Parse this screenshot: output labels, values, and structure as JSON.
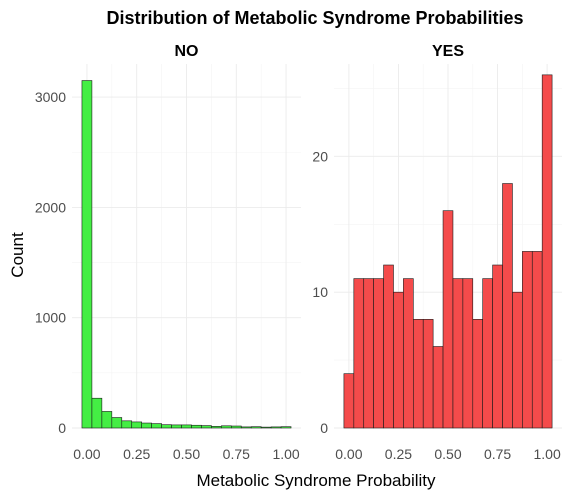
{
  "chart_data": {
    "type": "bar",
    "title": "Distribution of Metabolic Syndrome Probabilities",
    "xlabel": "Metabolic Syndrome Probability",
    "ylabel": "Count",
    "grid": true,
    "legend": "none",
    "bin_width": 0.05,
    "bin_start": -0.025,
    "xlim": [
      -0.075,
      1.075
    ],
    "x_ticks": [
      0.0,
      0.25,
      0.5,
      0.75,
      1.0
    ],
    "x_tick_labels": [
      "0.00",
      "0.25",
      "0.50",
      "0.75",
      "1.00"
    ],
    "panels": [
      {
        "label": "NO",
        "color": "#44ee44",
        "ylim": [
          0,
          3300
        ],
        "y_ticks": [
          0,
          1000,
          2000,
          3000
        ],
        "y_tick_labels": [
          "0",
          "1000",
          "2000",
          "3000"
        ],
        "x": [
          0.0,
          0.05,
          0.1,
          0.15,
          0.2,
          0.25,
          0.3,
          0.35,
          0.4,
          0.45,
          0.5,
          0.55,
          0.6,
          0.65,
          0.7,
          0.75,
          0.8,
          0.85,
          0.9,
          0.95,
          1.0
        ],
        "values": [
          3150,
          270,
          150,
          95,
          65,
          55,
          45,
          40,
          30,
          28,
          28,
          25,
          22,
          15,
          20,
          18,
          10,
          12,
          8,
          10,
          12
        ]
      },
      {
        "label": "YES",
        "color": "#f44b4b",
        "ylim": [
          0,
          26.8
        ],
        "y_ticks": [
          0,
          10,
          20
        ],
        "y_tick_labels": [
          "0",
          "10",
          "20"
        ],
        "x": [
          0.0,
          0.05,
          0.1,
          0.15,
          0.2,
          0.25,
          0.3,
          0.35,
          0.4,
          0.45,
          0.5,
          0.55,
          0.6,
          0.65,
          0.7,
          0.75,
          0.8,
          0.85,
          0.9,
          0.95,
          1.0
        ],
        "values": [
          4,
          11,
          11,
          11,
          12,
          10,
          11,
          8,
          8,
          6,
          16,
          11,
          11,
          8,
          11,
          12,
          18,
          10,
          13,
          13,
          26
        ]
      }
    ]
  }
}
